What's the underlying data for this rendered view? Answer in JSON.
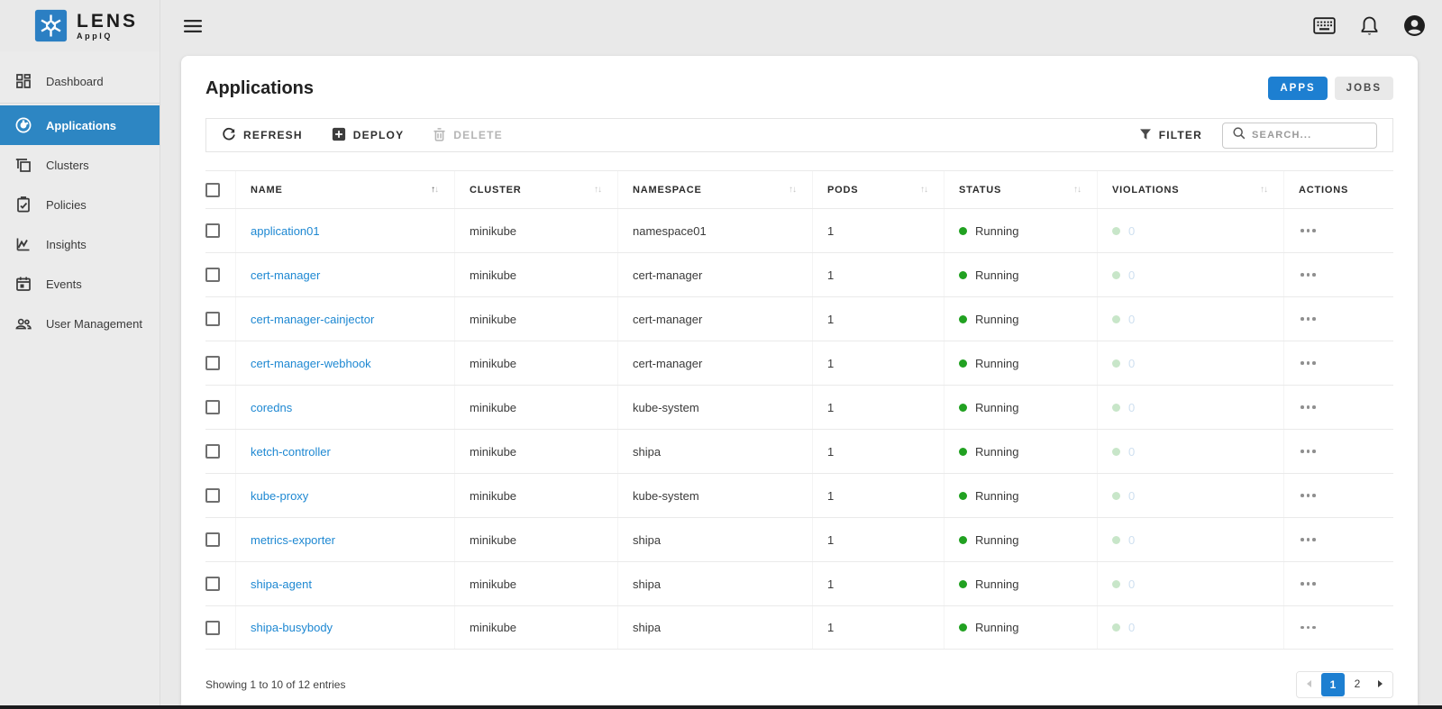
{
  "brand": {
    "name": "LENS",
    "sub": "AppIQ"
  },
  "topbar": {
    "icons": [
      "keyboard-icon",
      "notifications-icon",
      "account-icon"
    ]
  },
  "sidebar": {
    "items": [
      {
        "id": "dashboard",
        "label": "Dashboard",
        "icon": "dashboard-icon",
        "active": false,
        "divider_after": true
      },
      {
        "id": "applications",
        "label": "Applications",
        "icon": "applications-icon",
        "active": true,
        "divider_after": false
      },
      {
        "id": "clusters",
        "label": "Clusters",
        "icon": "clusters-icon",
        "active": false,
        "divider_after": false
      },
      {
        "id": "policies",
        "label": "Policies",
        "icon": "policies-icon",
        "active": false,
        "divider_after": false
      },
      {
        "id": "insights",
        "label": "Insights",
        "icon": "insights-icon",
        "active": false,
        "divider_after": false
      },
      {
        "id": "events",
        "label": "Events",
        "icon": "events-icon",
        "active": false,
        "divider_after": false
      },
      {
        "id": "user-management",
        "label": "User Management",
        "icon": "people-icon",
        "active": false,
        "divider_after": false
      }
    ]
  },
  "page": {
    "title": "Applications"
  },
  "view_toggle": {
    "apps": "APPS",
    "jobs": "JOBS",
    "active": "APPS"
  },
  "toolbar": {
    "refresh": "REFRESH",
    "deploy": "DEPLOY",
    "delete": "DELETE",
    "filter": "FILTER",
    "search_placeholder": "SEARCH..."
  },
  "table": {
    "columns": [
      {
        "id": "name",
        "label": "NAME",
        "sortable": true,
        "sort": "asc"
      },
      {
        "id": "cluster",
        "label": "CLUSTER",
        "sortable": true,
        "sort": "none"
      },
      {
        "id": "namespace",
        "label": "NAMESPACE",
        "sortable": true,
        "sort": "none"
      },
      {
        "id": "pods",
        "label": "PODS",
        "sortable": true,
        "sort": "none"
      },
      {
        "id": "status",
        "label": "STATUS",
        "sortable": true,
        "sort": "none"
      },
      {
        "id": "violations",
        "label": "VIOLATIONS",
        "sortable": true,
        "sort": "none"
      },
      {
        "id": "actions",
        "label": "ACTIONS",
        "sortable": false,
        "sort": "none"
      }
    ],
    "rows": [
      {
        "name": "application01",
        "cluster": "minikube",
        "namespace": "namespace01",
        "pods": "1",
        "status": "Running",
        "violations": "0"
      },
      {
        "name": "cert-manager",
        "cluster": "minikube",
        "namespace": "cert-manager",
        "pods": "1",
        "status": "Running",
        "violations": "0"
      },
      {
        "name": "cert-manager-cainjector",
        "cluster": "minikube",
        "namespace": "cert-manager",
        "pods": "1",
        "status": "Running",
        "violations": "0"
      },
      {
        "name": "cert-manager-webhook",
        "cluster": "minikube",
        "namespace": "cert-manager",
        "pods": "1",
        "status": "Running",
        "violations": "0"
      },
      {
        "name": "coredns",
        "cluster": "minikube",
        "namespace": "kube-system",
        "pods": "1",
        "status": "Running",
        "violations": "0"
      },
      {
        "name": "ketch-controller",
        "cluster": "minikube",
        "namespace": "shipa",
        "pods": "1",
        "status": "Running",
        "violations": "0"
      },
      {
        "name": "kube-proxy",
        "cluster": "minikube",
        "namespace": "kube-system",
        "pods": "1",
        "status": "Running",
        "violations": "0"
      },
      {
        "name": "metrics-exporter",
        "cluster": "minikube",
        "namespace": "shipa",
        "pods": "1",
        "status": "Running",
        "violations": "0"
      },
      {
        "name": "shipa-agent",
        "cluster": "minikube",
        "namespace": "shipa",
        "pods": "1",
        "status": "Running",
        "violations": "0"
      },
      {
        "name": "shipa-busybody",
        "cluster": "minikube",
        "namespace": "shipa",
        "pods": "1",
        "status": "Running",
        "violations": "0"
      }
    ]
  },
  "footer": {
    "summary": "Showing 1 to 10 of 12 entries",
    "pages": [
      "1",
      "2"
    ],
    "active_page": "1"
  },
  "colors": {
    "accent_blue": "#1d7fd1",
    "sidebar_active_blue": "#2d86c3",
    "link_blue": "#1e88d2",
    "status_green": "#21a121",
    "violation_dot_green": "#c8e6c9",
    "violation_zero_blue": "#cfe0f0",
    "chrome_gray": "#e9e9e9"
  }
}
